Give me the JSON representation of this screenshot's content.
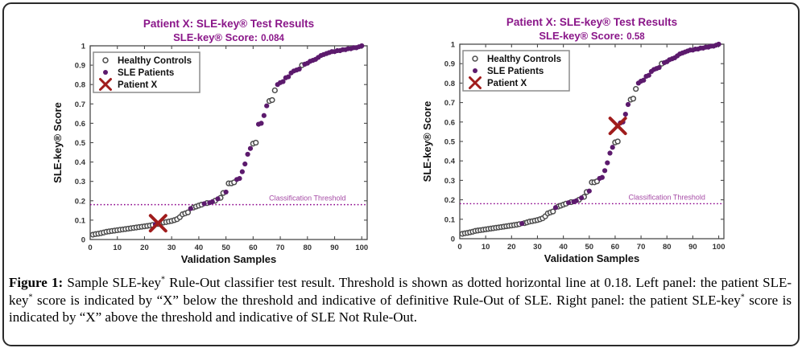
{
  "theme": {
    "title_color": "#8a1689",
    "sle_color": "#5c1a6d",
    "hc_edge_color": "#4d4d4d",
    "patient_x_color": "#a01c1c",
    "threshold_color": "#8b008b",
    "threshold_label_color": "#a64ca6",
    "axis_color": "#4a4a4a",
    "tick_text_color": "#333333",
    "label_text_color": "#111111",
    "legend_border_color": "#8c8c8c"
  },
  "legend": {
    "items": [
      {
        "label": "Healthy Controls",
        "marker": "open-circle"
      },
      {
        "label": "SLE Patients",
        "marker": "filled-circle"
      },
      {
        "label": "Patient X",
        "marker": "x"
      }
    ]
  },
  "chart_data": [
    {
      "type": "scatter",
      "title": "Patient X:  SLE-key® Test Results",
      "subtitle_prefix": "SLE-key® Score:",
      "score": "0.084",
      "xlabel": "Validation Samples",
      "ylabel": "SLE-key® Score",
      "xlim": [
        0,
        102
      ],
      "ylim": [
        0,
        1
      ],
      "xticks": [
        0,
        10,
        20,
        30,
        40,
        50,
        60,
        70,
        80,
        90,
        100
      ],
      "yticks": [
        0,
        0.1,
        0.2,
        0.3,
        0.4,
        0.5,
        0.6,
        0.7,
        0.8,
        0.9,
        1
      ],
      "ytick_labels": [
        "0",
        "0.1",
        "0.2",
        "0.3",
        "0.4",
        "0.5",
        "0.6",
        "0.7",
        "0.8",
        "0.9",
        "1"
      ],
      "grid": false,
      "legend_position": "top-left",
      "threshold": {
        "value": 0.18,
        "label": "Classification Threshold"
      },
      "patient_x": {
        "x": 25,
        "y": 0.084
      },
      "series": [
        {
          "name": "Healthy Controls",
          "marker": "open-circle",
          "points": [
            [
              1,
              0.025
            ],
            [
              2,
              0.028
            ],
            [
              3,
              0.03
            ],
            [
              4,
              0.033
            ],
            [
              5,
              0.036
            ],
            [
              6,
              0.04
            ],
            [
              7,
              0.042
            ],
            [
              8,
              0.044
            ],
            [
              9,
              0.046
            ],
            [
              10,
              0.048
            ],
            [
              11,
              0.05
            ],
            [
              12,
              0.052
            ],
            [
              13,
              0.054
            ],
            [
              14,
              0.056
            ],
            [
              15,
              0.058
            ],
            [
              16,
              0.06
            ],
            [
              17,
              0.062
            ],
            [
              18,
              0.064
            ],
            [
              19,
              0.066
            ],
            [
              20,
              0.068
            ],
            [
              21,
              0.07
            ],
            [
              22,
              0.072
            ],
            [
              23,
              0.075
            ],
            [
              25,
              0.08
            ],
            [
              26,
              0.084
            ],
            [
              27,
              0.088
            ],
            [
              28,
              0.09
            ],
            [
              29,
              0.093
            ],
            [
              30,
              0.096
            ],
            [
              31,
              0.1
            ],
            [
              32,
              0.105
            ],
            [
              33,
              0.115
            ],
            [
              34,
              0.13
            ],
            [
              35,
              0.135
            ],
            [
              36,
              0.14
            ],
            [
              38,
              0.165
            ],
            [
              39,
              0.17
            ],
            [
              40,
              0.175
            ],
            [
              41,
              0.18
            ],
            [
              43,
              0.188
            ],
            [
              46,
              0.2
            ],
            [
              48,
              0.215
            ],
            [
              49,
              0.24
            ],
            [
              51,
              0.29
            ],
            [
              52,
              0.29
            ],
            [
              53,
              0.295
            ],
            [
              60,
              0.495
            ],
            [
              61,
              0.5
            ],
            [
              66,
              0.715
            ],
            [
              67,
              0.72
            ],
            [
              68,
              0.77
            ],
            [
              78,
              0.9
            ]
          ]
        },
        {
          "name": "SLE Patients",
          "marker": "filled-circle",
          "points": [
            [
              24,
              0.078
            ],
            [
              37,
              0.16
            ],
            [
              42,
              0.185
            ],
            [
              44,
              0.19
            ],
            [
              45,
              0.195
            ],
            [
              47,
              0.21
            ],
            [
              50,
              0.245
            ],
            [
              54,
              0.31
            ],
            [
              55,
              0.315
            ],
            [
              56,
              0.35
            ],
            [
              57,
              0.39
            ],
            [
              58,
              0.44
            ],
            [
              59,
              0.47
            ],
            [
              62,
              0.595
            ],
            [
              63,
              0.6
            ],
            [
              64,
              0.64
            ],
            [
              65,
              0.69
            ],
            [
              69,
              0.8
            ],
            [
              70,
              0.81
            ],
            [
              71,
              0.815
            ],
            [
              72,
              0.835
            ],
            [
              73,
              0.84
            ],
            [
              74,
              0.86
            ],
            [
              75,
              0.87
            ],
            [
              76,
              0.875
            ],
            [
              77,
              0.88
            ],
            [
              79,
              0.905
            ],
            [
              80,
              0.91
            ],
            [
              81,
              0.92
            ],
            [
              82,
              0.925
            ],
            [
              83,
              0.93
            ],
            [
              84,
              0.94
            ],
            [
              85,
              0.95
            ],
            [
              86,
              0.955
            ],
            [
              87,
              0.96
            ],
            [
              88,
              0.965
            ],
            [
              89,
              0.97
            ],
            [
              90,
              0.97
            ],
            [
              91,
              0.975
            ],
            [
              92,
              0.975
            ],
            [
              93,
              0.98
            ],
            [
              94,
              0.98
            ],
            [
              95,
              0.985
            ],
            [
              96,
              0.985
            ],
            [
              97,
              0.99
            ],
            [
              98,
              0.99
            ],
            [
              99,
              0.995
            ],
            [
              100,
              1.0
            ]
          ]
        }
      ]
    },
    {
      "type": "scatter",
      "title": "Patient X:  SLE-key® Test Results",
      "subtitle_prefix": "SLE-key® Score:",
      "score": "0.58",
      "xlabel": "Validation Samples",
      "ylabel": "SLE-key® Score",
      "xlim": [
        0,
        102
      ],
      "ylim": [
        0,
        1
      ],
      "xticks": [
        0,
        10,
        20,
        30,
        40,
        50,
        60,
        70,
        80,
        90,
        100
      ],
      "yticks": [
        0,
        0.1,
        0.2,
        0.3,
        0.4,
        0.5,
        0.6,
        0.7,
        0.8,
        0.9,
        1
      ],
      "ytick_labels": [
        "0",
        "0.1",
        "0.2",
        "0.3",
        "0.4",
        "0.5",
        "0.6",
        "0.7",
        "0.8",
        "0.9",
        "1"
      ],
      "grid": false,
      "legend_position": "top-left",
      "threshold": {
        "value": 0.18,
        "label": "Classification Threshold"
      },
      "patient_x": {
        "x": 61,
        "y": 0.58
      },
      "series": [
        {
          "name": "Healthy Controls",
          "marker": "open-circle",
          "points": [
            [
              1,
              0.025
            ],
            [
              2,
              0.028
            ],
            [
              3,
              0.03
            ],
            [
              4,
              0.033
            ],
            [
              5,
              0.036
            ],
            [
              6,
              0.04
            ],
            [
              7,
              0.042
            ],
            [
              8,
              0.044
            ],
            [
              9,
              0.046
            ],
            [
              10,
              0.048
            ],
            [
              11,
              0.05
            ],
            [
              12,
              0.052
            ],
            [
              13,
              0.054
            ],
            [
              14,
              0.056
            ],
            [
              15,
              0.058
            ],
            [
              16,
              0.06
            ],
            [
              17,
              0.062
            ],
            [
              18,
              0.064
            ],
            [
              19,
              0.066
            ],
            [
              20,
              0.068
            ],
            [
              21,
              0.07
            ],
            [
              22,
              0.072
            ],
            [
              23,
              0.075
            ],
            [
              25,
              0.08
            ],
            [
              26,
              0.084
            ],
            [
              27,
              0.088
            ],
            [
              28,
              0.09
            ],
            [
              29,
              0.093
            ],
            [
              30,
              0.096
            ],
            [
              31,
              0.1
            ],
            [
              32,
              0.105
            ],
            [
              33,
              0.115
            ],
            [
              34,
              0.13
            ],
            [
              35,
              0.135
            ],
            [
              36,
              0.14
            ],
            [
              38,
              0.165
            ],
            [
              39,
              0.17
            ],
            [
              40,
              0.175
            ],
            [
              41,
              0.18
            ],
            [
              43,
              0.188
            ],
            [
              46,
              0.2
            ],
            [
              48,
              0.215
            ],
            [
              49,
              0.24
            ],
            [
              51,
              0.29
            ],
            [
              52,
              0.29
            ],
            [
              53,
              0.295
            ],
            [
              60,
              0.495
            ],
            [
              61,
              0.5
            ],
            [
              66,
              0.715
            ],
            [
              67,
              0.72
            ],
            [
              68,
              0.77
            ],
            [
              78,
              0.9
            ]
          ]
        },
        {
          "name": "SLE Patients",
          "marker": "filled-circle",
          "points": [
            [
              24,
              0.078
            ],
            [
              37,
              0.16
            ],
            [
              42,
              0.185
            ],
            [
              44,
              0.19
            ],
            [
              45,
              0.195
            ],
            [
              47,
              0.21
            ],
            [
              50,
              0.245
            ],
            [
              54,
              0.31
            ],
            [
              55,
              0.315
            ],
            [
              56,
              0.35
            ],
            [
              57,
              0.39
            ],
            [
              58,
              0.44
            ],
            [
              59,
              0.47
            ],
            [
              62,
              0.595
            ],
            [
              63,
              0.6
            ],
            [
              64,
              0.64
            ],
            [
              65,
              0.69
            ],
            [
              69,
              0.8
            ],
            [
              70,
              0.81
            ],
            [
              71,
              0.815
            ],
            [
              72,
              0.835
            ],
            [
              73,
              0.84
            ],
            [
              74,
              0.86
            ],
            [
              75,
              0.87
            ],
            [
              76,
              0.875
            ],
            [
              77,
              0.88
            ],
            [
              79,
              0.905
            ],
            [
              80,
              0.91
            ],
            [
              81,
              0.92
            ],
            [
              82,
              0.925
            ],
            [
              83,
              0.93
            ],
            [
              84,
              0.94
            ],
            [
              85,
              0.95
            ],
            [
              86,
              0.955
            ],
            [
              87,
              0.96
            ],
            [
              88,
              0.965
            ],
            [
              89,
              0.97
            ],
            [
              90,
              0.97
            ],
            [
              91,
              0.975
            ],
            [
              92,
              0.975
            ],
            [
              93,
              0.98
            ],
            [
              94,
              0.98
            ],
            [
              95,
              0.985
            ],
            [
              96,
              0.985
            ],
            [
              97,
              0.99
            ],
            [
              98,
              0.99
            ],
            [
              99,
              0.995
            ],
            [
              100,
              1.0
            ]
          ]
        }
      ]
    }
  ],
  "caption": {
    "segments": [
      {
        "t": "Figure 1:",
        "bold": true,
        "name": "caption-label"
      },
      {
        "t": " Sample SLE-key"
      },
      {
        "t": "*",
        "sup": true
      },
      {
        "t": " Rule-Out classifier test result. Threshold is shown as dotted horizontal line at 0.18. Left panel: the patient SLE-key"
      },
      {
        "t": "*",
        "sup": true
      },
      {
        "t": " score is indicated by “X” below the threshold and indicative of definitive Rule-Out of SLE. Right panel: the patient SLE-key"
      },
      {
        "t": "*",
        "sup": true
      },
      {
        "t": " score is indicated by “X” above the threshold and indicative of SLE Not Rule-Out."
      }
    ]
  }
}
